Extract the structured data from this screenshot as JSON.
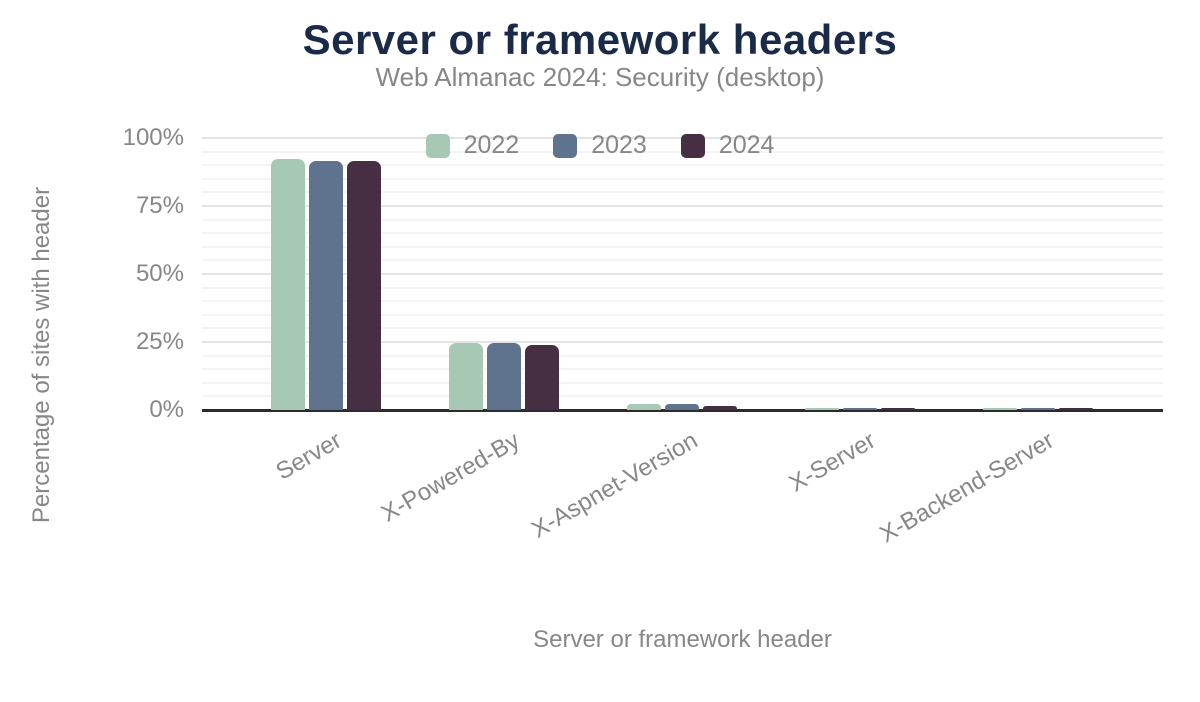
{
  "chart_data": {
    "type": "bar",
    "title": "Server or framework headers",
    "subtitle": "Web Almanac 2024: Security (desktop)",
    "xlabel": "Server or framework header",
    "ylabel": "Percentage of sites with header",
    "categories": [
      "Server",
      "X-Powered-By",
      "X-Aspnet-Version",
      "X-Server",
      "X-Backend-Server"
    ],
    "series": [
      {
        "name": "2022",
        "color": "#a6c8b5",
        "values": [
          92.4,
          24.8,
          2.2,
          0.6,
          0.5
        ]
      },
      {
        "name": "2023",
        "color": "#60738e",
        "values": [
          91.5,
          24.6,
          2.1,
          0.5,
          0.4
        ]
      },
      {
        "name": "2024",
        "color": "#472f43",
        "values": [
          91.4,
          24.0,
          1.4,
          0.4,
          0.3
        ]
      }
    ],
    "ylim": [
      0,
      100
    ],
    "yticks_values": [
      0,
      25,
      50,
      75,
      100
    ],
    "yticks_labels": [
      "0%",
      "25%",
      "50%",
      "75%",
      "100%"
    ],
    "minor_grid_step_percent": 5,
    "legend_position": "top-center",
    "x_tick_rotation_deg": -30,
    "grid": "horizontal",
    "colors": {
      "title_text": "#1a2b49",
      "muted_text": "#878787",
      "axis_line": "#2b2b2b",
      "grid_major": "#e4e4e4",
      "grid_minor": "#f4f4f4",
      "background": "#ffffff"
    }
  }
}
